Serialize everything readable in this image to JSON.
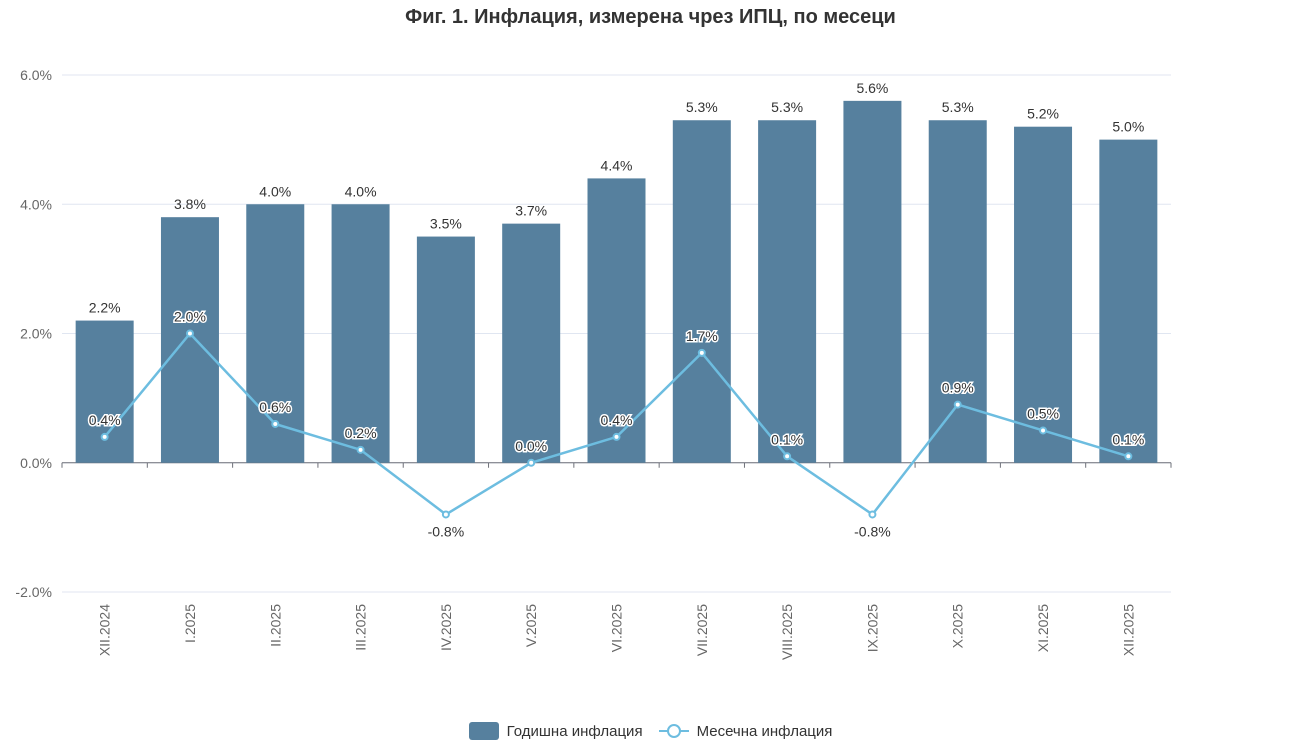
{
  "title": "Фиг. 1. Инфлация, измерена чрез ИПЦ, по месеци",
  "chart_data": {
    "type": "bar",
    "title": "Фиг. 1. Инфлация, измерена чрез ИПЦ, по месеци",
    "xlabel": "",
    "ylabel": "",
    "ylim": [
      -2.0,
      6.0
    ],
    "y_ticks": [
      "-2.0%",
      "0.0%",
      "2.0%",
      "4.0%",
      "6.0%"
    ],
    "y_tick_values": [
      -2.0,
      0.0,
      2.0,
      4.0,
      6.0
    ],
    "grid": true,
    "legend_position": "bottom-center",
    "categories": [
      "XII.2024",
      "I.2025",
      "II.2025",
      "III.2025",
      "IV.2025",
      "V.2025",
      "VI.2025",
      "VII.2025",
      "VIII.2025",
      "IX.2025",
      "X.2025",
      "XI.2025",
      "XII.2025"
    ],
    "series": [
      {
        "name": "Годишна инфлация",
        "type": "bar",
        "color": "#56809e",
        "values": [
          2.2,
          3.8,
          4.0,
          4.0,
          3.5,
          3.7,
          4.4,
          5.3,
          5.3,
          5.6,
          5.3,
          5.2,
          5.0
        ],
        "labels": [
          "2.2%",
          "3.8%",
          "4.0%",
          "4.0%",
          "3.5%",
          "3.7%",
          "4.4%",
          "5.3%",
          "5.3%",
          "5.6%",
          "5.3%",
          "5.2%",
          "5.0%"
        ]
      },
      {
        "name": "Месечна инфлация",
        "type": "line",
        "color": "#6dbde0",
        "values": [
          0.4,
          2.0,
          0.6,
          0.2,
          -0.8,
          0.0,
          0.4,
          1.7,
          0.1,
          -0.8,
          0.9,
          0.5,
          0.1
        ],
        "labels": [
          "0.4%",
          "2.0%",
          "0.6%",
          "0.2%",
          "-0.8%",
          "0.0%",
          "0.4%",
          "1.7%",
          "0.1%",
          "-0.8%",
          "0.9%",
          "0.5%",
          "0.1%"
        ]
      }
    ]
  }
}
